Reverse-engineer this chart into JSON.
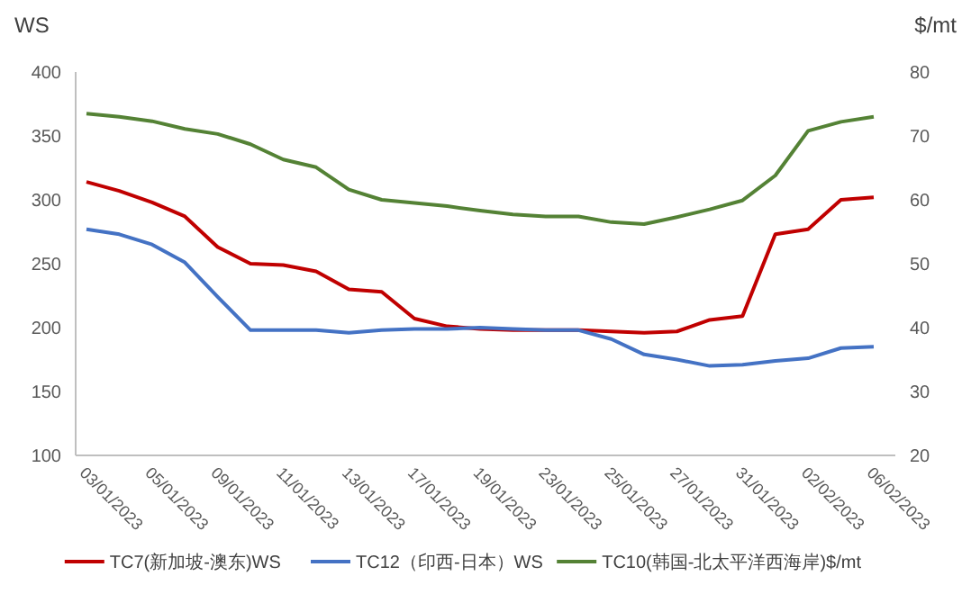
{
  "chart_data": {
    "type": "line",
    "ylabel": "WS",
    "y2label": "$/mt",
    "categories": [
      "03/01/2023",
      null,
      "05/01/2023",
      null,
      "09/01/2023",
      null,
      "11/01/2023",
      null,
      "13/01/2023",
      null,
      "17/01/2023",
      null,
      "19/01/2023",
      null,
      "23/01/2023",
      null,
      "25/01/2023",
      null,
      "27/01/2023",
      null,
      "31/01/2023",
      null,
      "02/02/2023",
      null,
      "06/02/2023"
    ],
    "ylim": [
      100,
      400
    ],
    "yticks": [
      100,
      150,
      200,
      250,
      300,
      350,
      400
    ],
    "y2lim": [
      20,
      80
    ],
    "y2ticks": [
      20,
      30,
      40,
      50,
      60,
      70,
      80
    ],
    "grid": false,
    "legend": "bottom",
    "marker": "none",
    "line_style": "solid",
    "series": [
      {
        "name": "TC7(新加坡-澳东)WS",
        "color": "#c00000",
        "values": [
          314,
          307,
          298,
          287,
          263,
          250,
          249,
          244,
          230,
          228,
          207,
          201,
          199,
          198,
          198,
          198,
          197,
          196,
          197,
          206,
          209,
          273,
          277,
          300,
          302
        ]
      },
      {
        "name": "TC12（印西-日本）WS",
        "color": "#4472c4",
        "values": [
          277,
          273,
          265,
          251,
          224,
          198,
          198,
          198,
          196,
          198,
          199,
          199,
          200,
          199,
          198,
          198,
          191,
          179,
          175,
          170,
          171,
          174,
          176,
          184,
          185
        ]
      },
      {
        "name": "TC10(韩国-北太平洋西海岸)$/mt",
        "color": "#548235",
        "axis": "y2",
        "values": [
          73.5,
          73.0,
          72.3,
          71.1,
          70.3,
          68.7,
          66.3,
          65.1,
          61.6,
          60.0,
          59.5,
          59.0,
          58.3,
          57.7,
          57.4,
          57.4,
          56.5,
          56.2,
          57.3,
          58.5,
          59.9,
          63.8,
          70.8,
          72.2,
          73.0
        ]
      }
    ]
  }
}
